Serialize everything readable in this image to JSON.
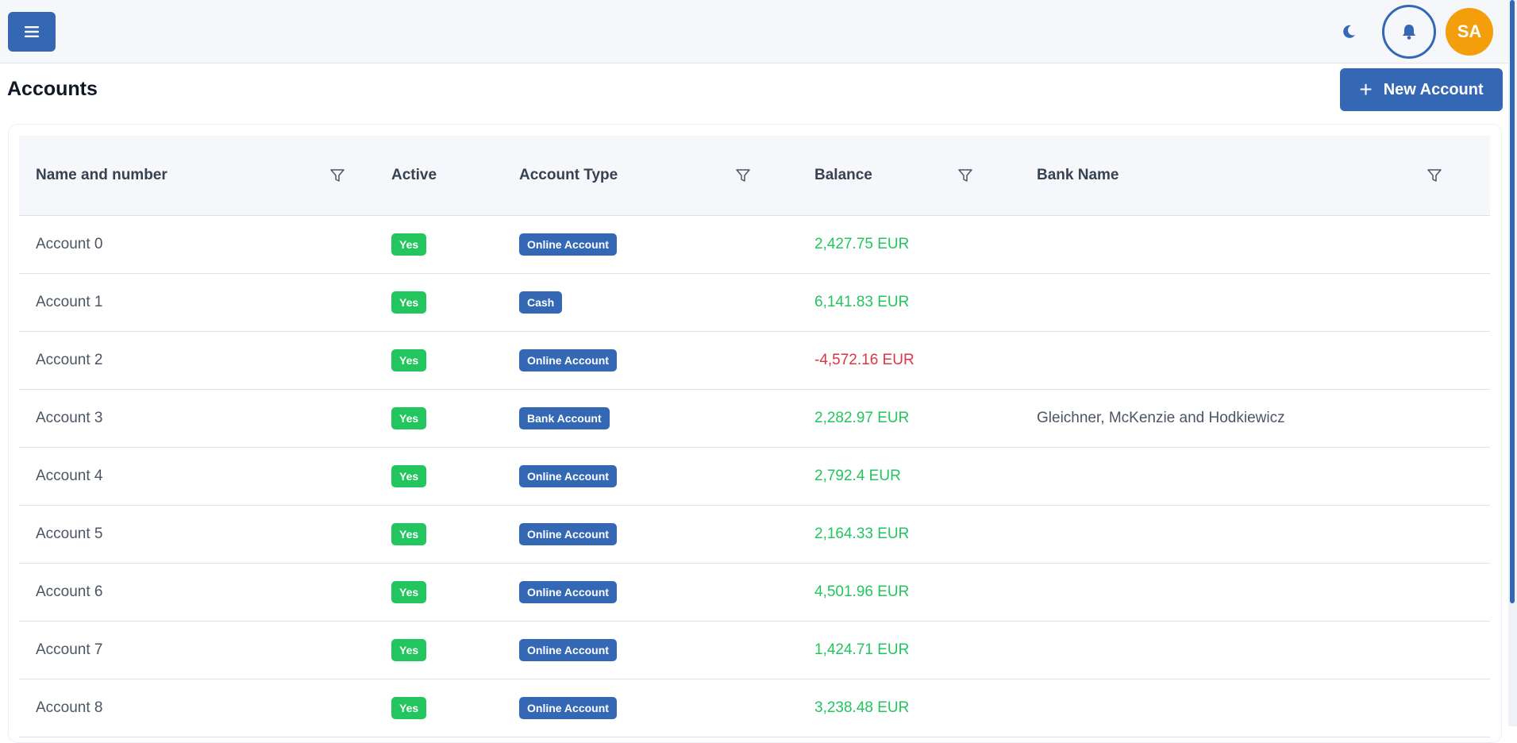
{
  "header": {
    "menu_icon": "hamburger-menu-icon",
    "theme_icon": "moon-icon",
    "notification_icon": "bell-icon",
    "avatar_initials": "SA"
  },
  "page": {
    "title": "Accounts",
    "new_button_label": "New Account"
  },
  "colors": {
    "primary": "#3468b5",
    "positive": "#22c55e",
    "negative": "#dc3545",
    "avatar": "#f59e0b"
  },
  "table": {
    "columns": [
      "Name and number",
      "Active",
      "Account Type",
      "Balance",
      "Bank Name"
    ],
    "rows": [
      {
        "name": "Account 0",
        "active": "Yes",
        "type": "Online Account",
        "balance": "2,427.75 EUR",
        "bank": ""
      },
      {
        "name": "Account 1",
        "active": "Yes",
        "type": "Cash",
        "balance": "6,141.83 EUR",
        "bank": ""
      },
      {
        "name": "Account 2",
        "active": "Yes",
        "type": "Online Account",
        "balance": "-4,572.16 EUR",
        "bank": ""
      },
      {
        "name": "Account 3",
        "active": "Yes",
        "type": "Bank Account",
        "balance": "2,282.97 EUR",
        "bank": "Gleichner, McKenzie and Hodkiewicz"
      },
      {
        "name": "Account 4",
        "active": "Yes",
        "type": "Online Account",
        "balance": "2,792.4 EUR",
        "bank": ""
      },
      {
        "name": "Account 5",
        "active": "Yes",
        "type": "Online Account",
        "balance": "2,164.33 EUR",
        "bank": ""
      },
      {
        "name": "Account 6",
        "active": "Yes",
        "type": "Online Account",
        "balance": "4,501.96 EUR",
        "bank": ""
      },
      {
        "name": "Account 7",
        "active": "Yes",
        "type": "Online Account",
        "balance": "1,424.71 EUR",
        "bank": ""
      },
      {
        "name": "Account 8",
        "active": "Yes",
        "type": "Online Account",
        "balance": "3,238.48 EUR",
        "bank": ""
      }
    ]
  }
}
